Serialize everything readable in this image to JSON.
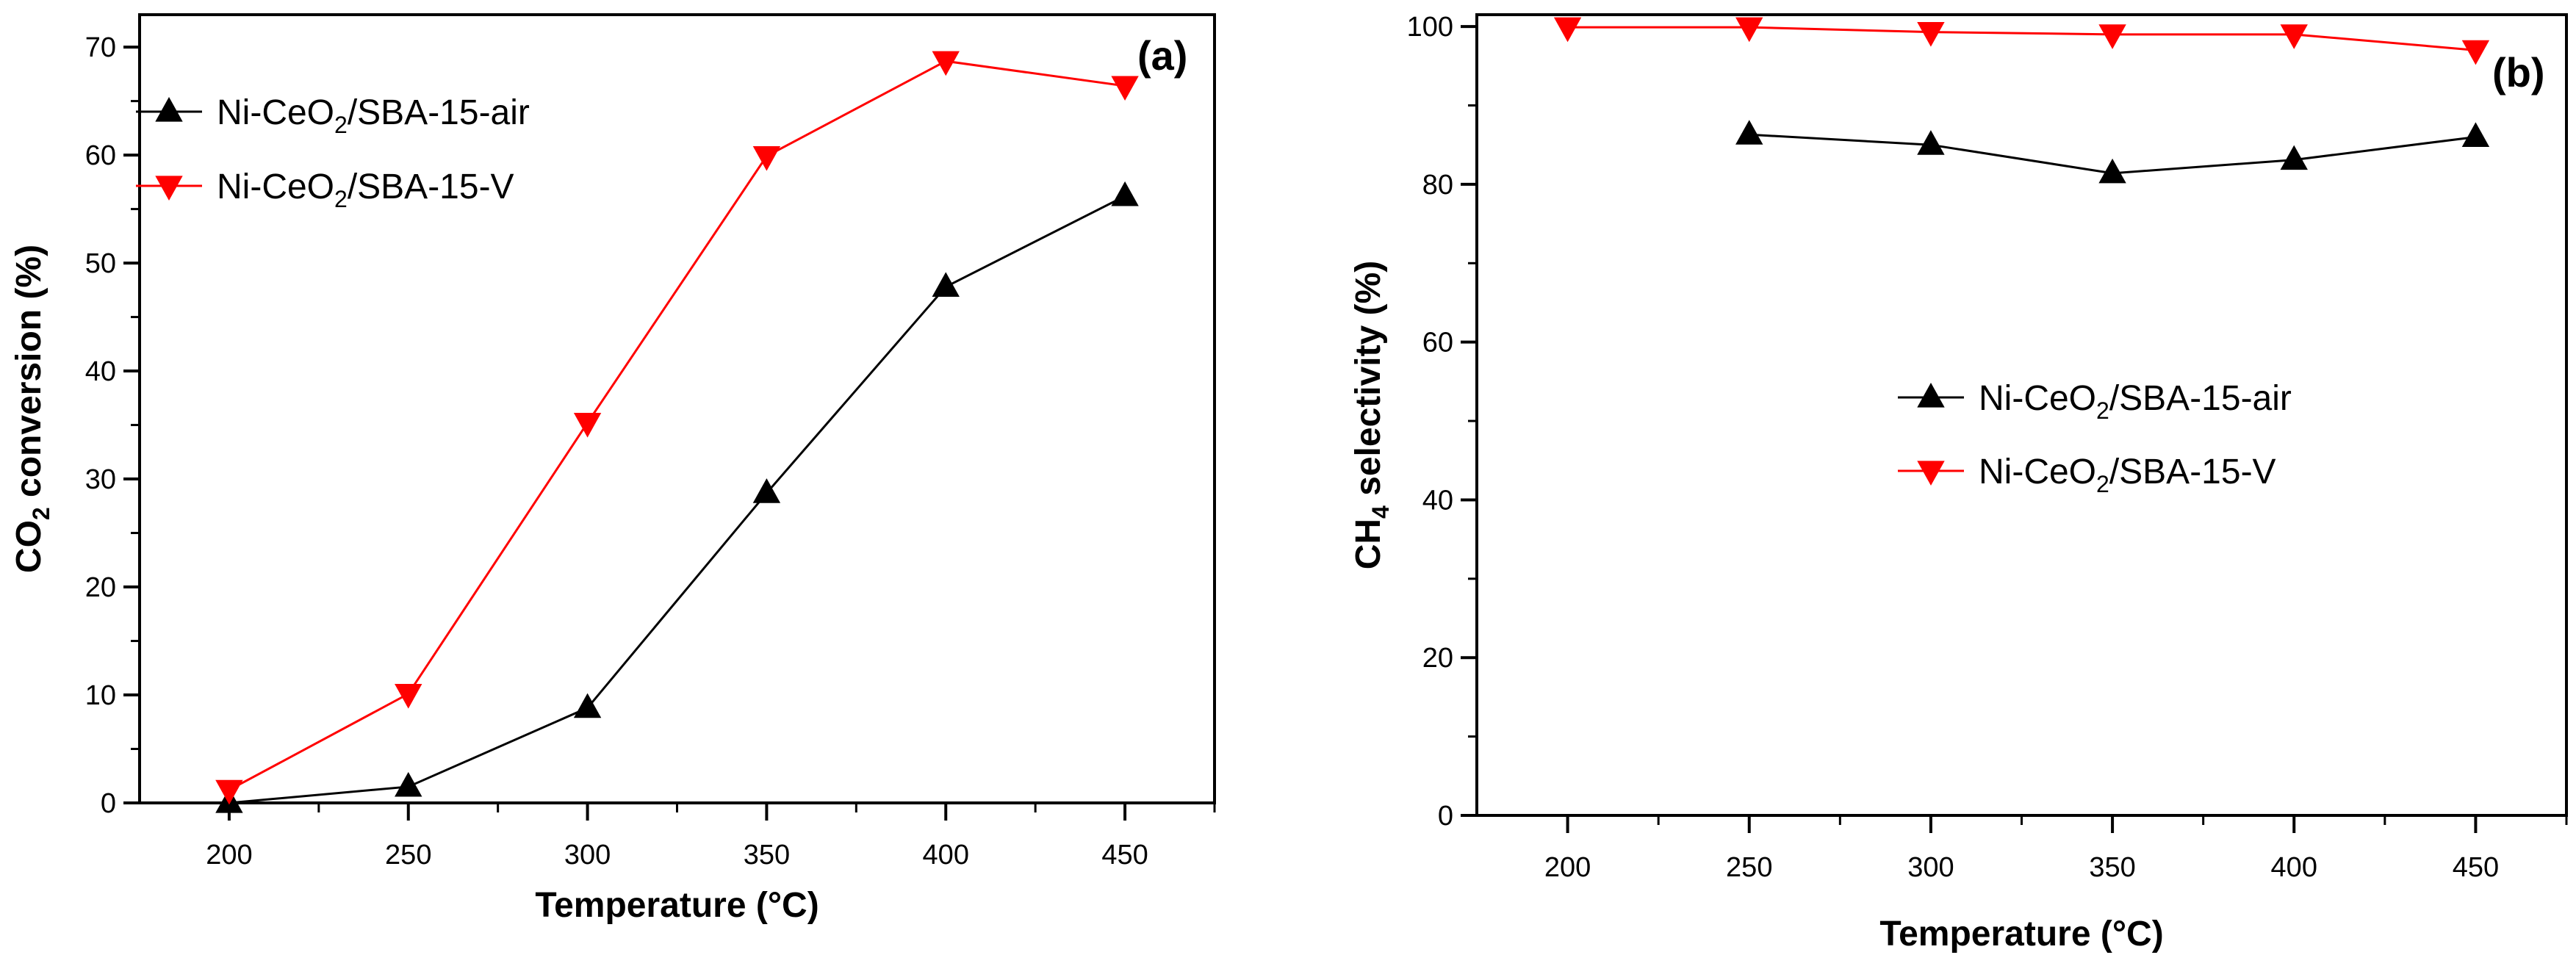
{
  "chart_data": [
    {
      "type": "line",
      "panel_label": "(a)",
      "title": "",
      "xlabel": "Temperature (°C)",
      "ylabel": {
        "main": "CO",
        "sub": "2",
        "rest": " conversion (%)"
      },
      "xlim": [
        175,
        475
      ],
      "ylim": [
        0,
        73
      ],
      "xticks": [
        200,
        250,
        300,
        350,
        400,
        450
      ],
      "yticks": [
        0,
        10,
        20,
        30,
        40,
        50,
        60,
        70
      ],
      "legend_position": "top-left",
      "series": [
        {
          "name": "Ni-CeO2/SBA-15-air",
          "legend": {
            "pre": "Ni-CeO",
            "sub": "2",
            "post": "/SBA-15-air"
          },
          "color": "#000000",
          "marker": "triangle-up",
          "x": [
            200,
            250,
            300,
            350,
            400,
            450
          ],
          "values": [
            0,
            1.5,
            8.8,
            28.7,
            47.8,
            56.2
          ]
        },
        {
          "name": "Ni-CeO2/SBA-15-V",
          "legend": {
            "pre": "Ni-CeO",
            "sub": "2",
            "post": "/SBA-15-V"
          },
          "color": "#ff0000",
          "marker": "triangle-down",
          "x": [
            200,
            250,
            300,
            350,
            400,
            450
          ],
          "values": [
            1.2,
            10.1,
            35.2,
            59.9,
            68.7,
            66.4
          ]
        }
      ]
    },
    {
      "type": "line",
      "panel_label": "(b)",
      "title": "",
      "xlabel": "Temperature (°C)",
      "ylabel": {
        "main": "CH",
        "sub": "4",
        "rest": " selectivity (%)"
      },
      "xlim": [
        175,
        475
      ],
      "ylim": [
        0,
        101.5
      ],
      "xticks": [
        200,
        250,
        300,
        350,
        400,
        450
      ],
      "yticks": [
        0,
        20,
        40,
        60,
        80,
        100
      ],
      "legend_position": "center-right",
      "series": [
        {
          "name": "Ni-CeO2/SBA-15-air",
          "legend": {
            "pre": "Ni-CeO",
            "sub": "2",
            "post": "/SBA-15-air"
          },
          "color": "#000000",
          "marker": "triangle-up",
          "x": [
            250,
            300,
            350,
            400,
            450
          ],
          "values": [
            86.3,
            85.0,
            81.4,
            83.1,
            86.0
          ]
        },
        {
          "name": "Ni-CeO2/SBA-15-V",
          "legend": {
            "pre": "Ni-CeO",
            "sub": "2",
            "post": "/SBA-15-V"
          },
          "color": "#ff0000",
          "marker": "triangle-down",
          "x": [
            200,
            250,
            300,
            350,
            400,
            450
          ],
          "values": [
            99.9,
            99.9,
            99.3,
            99.0,
            99.0,
            97.0
          ]
        }
      ]
    }
  ]
}
